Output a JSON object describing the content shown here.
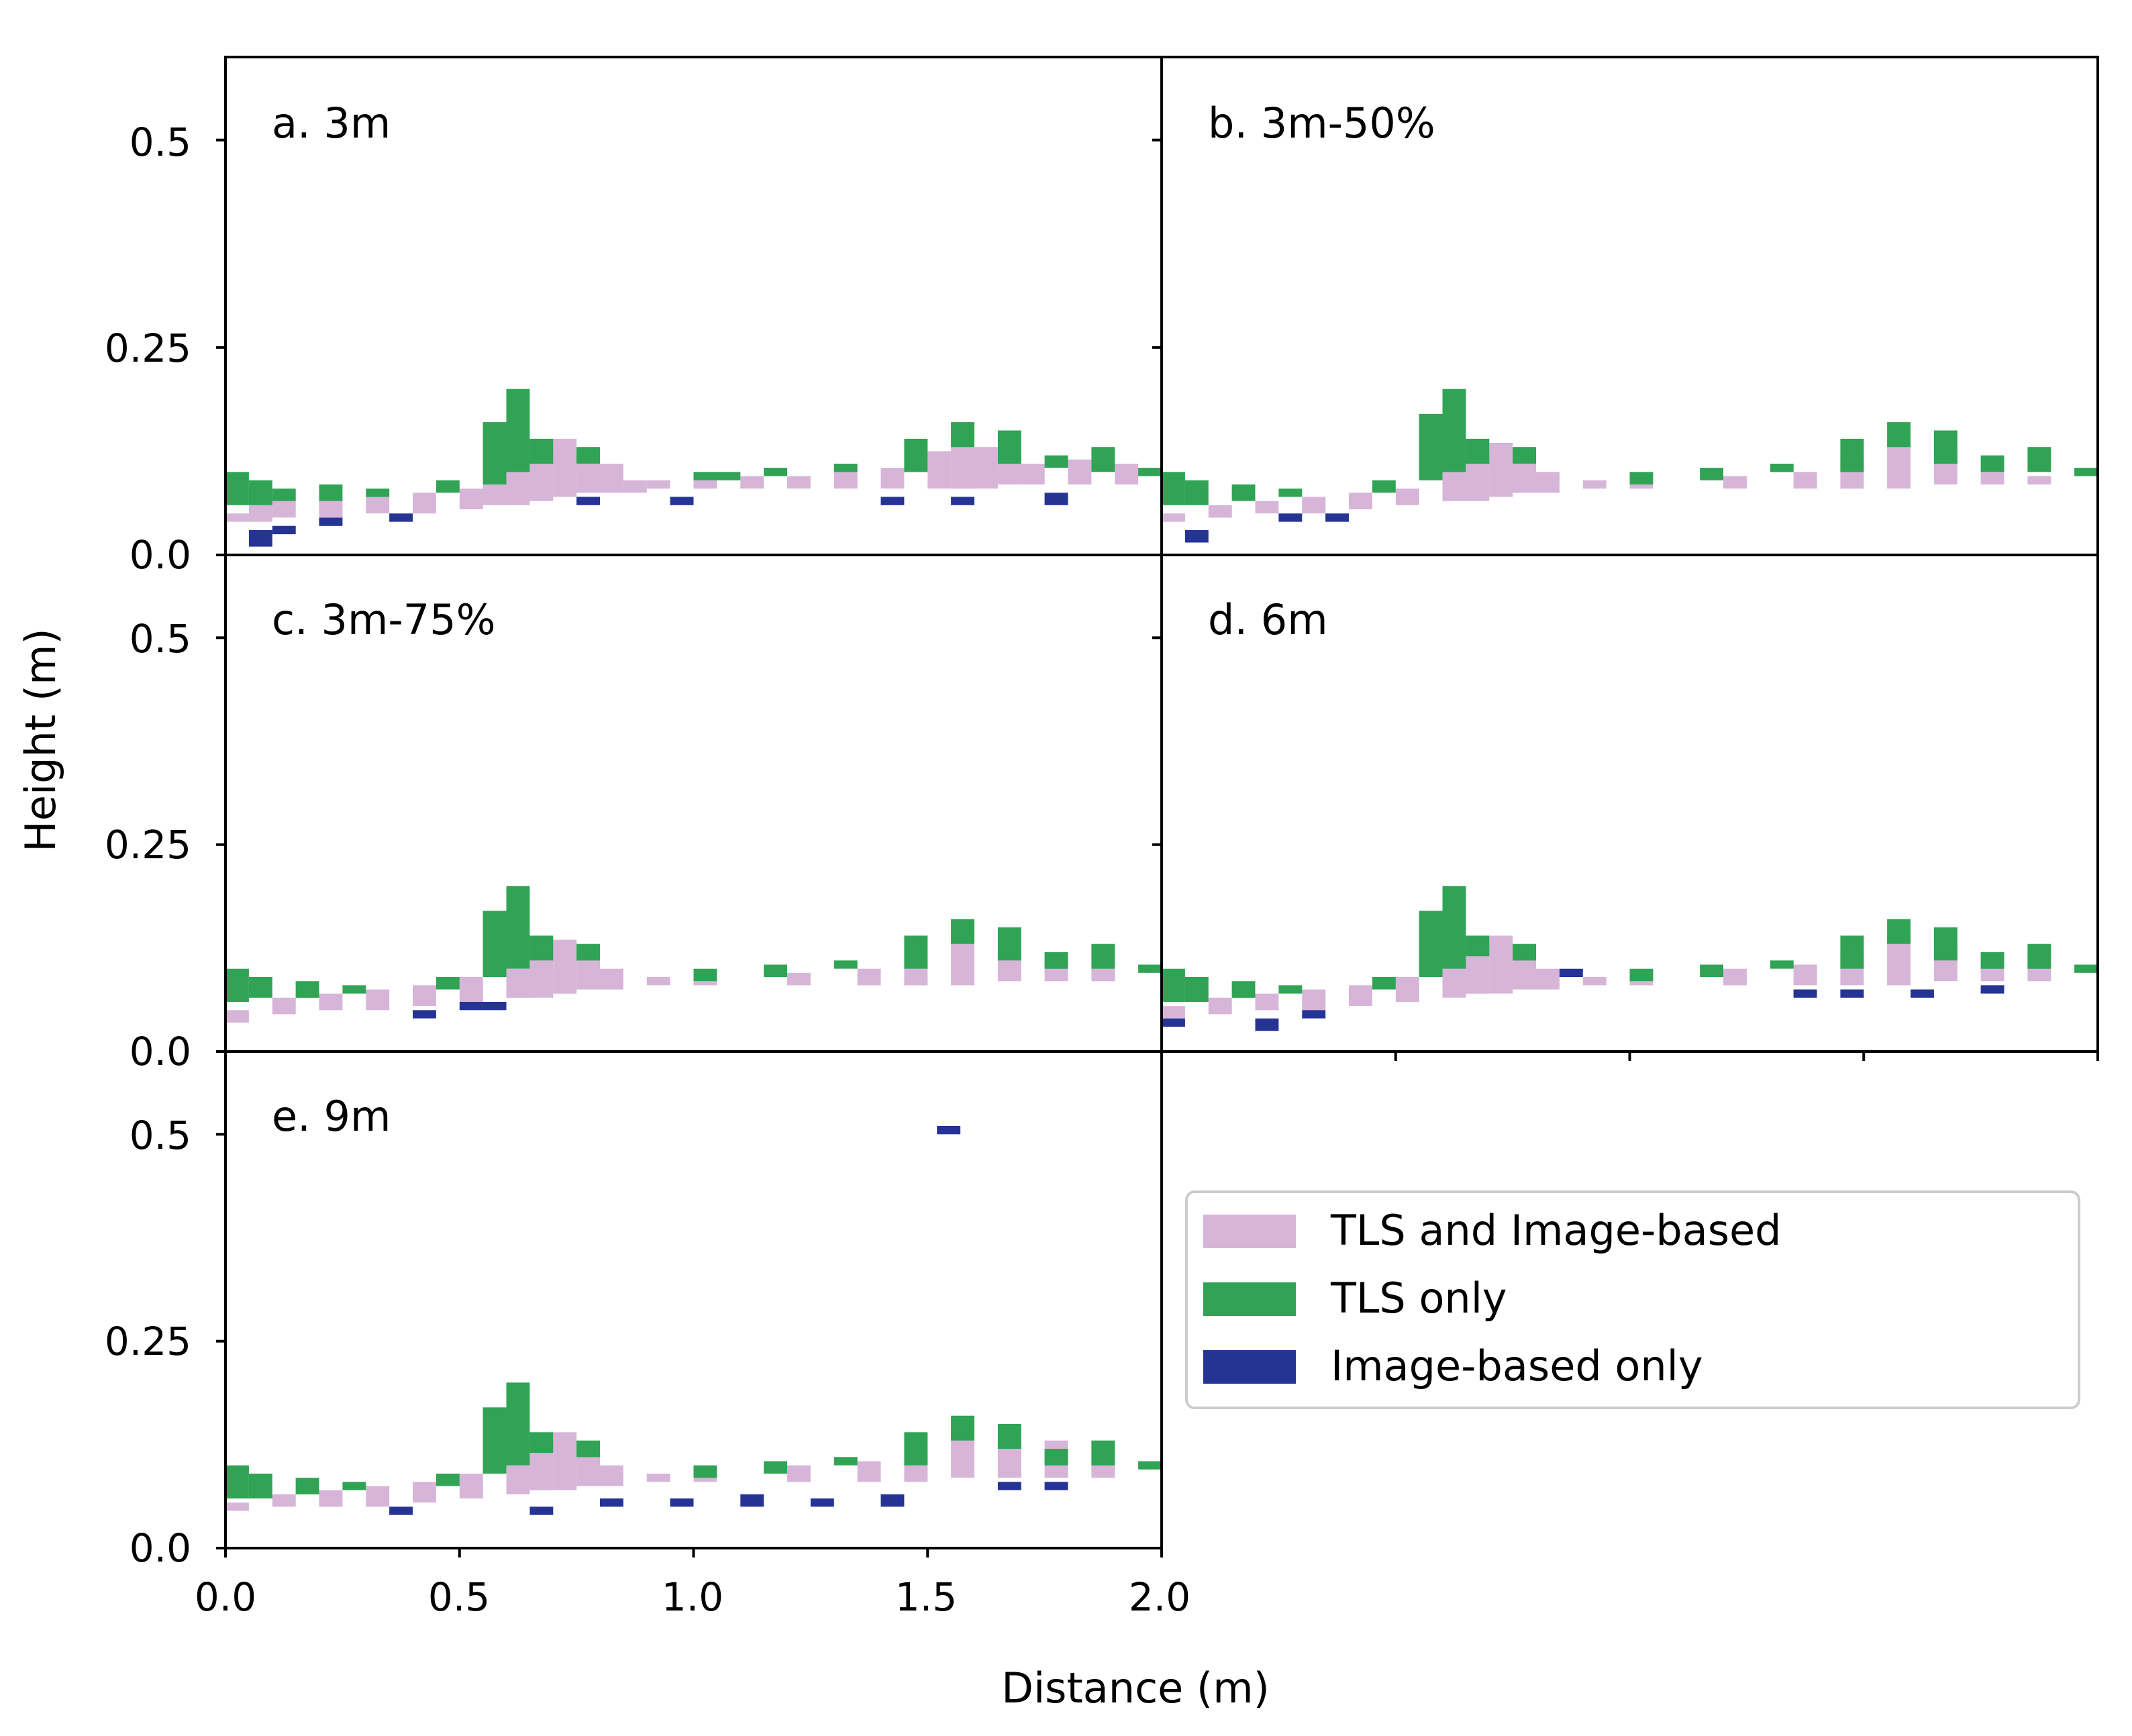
{
  "chart_data": {
    "type": "heatmap",
    "xlabel": "Distance (m)",
    "ylabel": "Height (m)",
    "xlim": [
      0.0,
      2.0
    ],
    "ylim": [
      0.0,
      0.6
    ],
    "xticks": [
      "0.0",
      "0.5",
      "1.0",
      "1.5",
      "2.0"
    ],
    "yticks": [
      "0.0",
      "0.25",
      "0.5"
    ],
    "colors": {
      "both": "#d7b5d8",
      "tls": "#31a354",
      "image": "#253494"
    },
    "legend": [
      {
        "key": "both",
        "label": "TLS and Image-based"
      },
      {
        "key": "tls",
        "label": "TLS only"
      },
      {
        "key": "image",
        "label": "Image-based only"
      }
    ],
    "panels": [
      {
        "label": "a. 3m",
        "both": [
          [
            0.0,
            0.04,
            0.05
          ],
          [
            0.05,
            0.04,
            0.06
          ],
          [
            0.1,
            0.045,
            0.065
          ],
          [
            0.2,
            0.045,
            0.065
          ],
          [
            0.3,
            0.05,
            0.07
          ],
          [
            0.4,
            0.05,
            0.075
          ],
          [
            0.5,
            0.055,
            0.08
          ],
          [
            0.55,
            0.06,
            0.09
          ],
          [
            0.6,
            0.06,
            0.105
          ],
          [
            0.65,
            0.065,
            0.13
          ],
          [
            0.7,
            0.07,
            0.14
          ],
          [
            0.75,
            0.075,
            0.12
          ],
          [
            0.8,
            0.075,
            0.11
          ],
          [
            0.85,
            0.075,
            0.09
          ],
          [
            0.9,
            0.08,
            0.09
          ],
          [
            1.0,
            0.08,
            0.09
          ],
          [
            1.1,
            0.08,
            0.095
          ],
          [
            1.2,
            0.08,
            0.095
          ],
          [
            1.3,
            0.08,
            0.1
          ],
          [
            1.4,
            0.08,
            0.105
          ],
          [
            1.5,
            0.08,
            0.125
          ],
          [
            1.55,
            0.08,
            0.14
          ],
          [
            1.6,
            0.08,
            0.13
          ],
          [
            1.65,
            0.085,
            0.12
          ],
          [
            1.7,
            0.085,
            0.11
          ],
          [
            1.8,
            0.085,
            0.115
          ],
          [
            1.9,
            0.085,
            0.11
          ]
        ],
        "tls": [
          [
            0.0,
            0.06,
            0.1
          ],
          [
            0.05,
            0.06,
            0.09
          ],
          [
            0.1,
            0.065,
            0.08
          ],
          [
            0.2,
            0.065,
            0.085
          ],
          [
            0.3,
            0.07,
            0.08
          ],
          [
            0.45,
            0.075,
            0.09
          ],
          [
            0.55,
            0.085,
            0.16
          ],
          [
            0.6,
            0.1,
            0.2
          ],
          [
            0.65,
            0.11,
            0.14
          ],
          [
            0.75,
            0.11,
            0.13
          ],
          [
            1.0,
            0.09,
            0.1
          ],
          [
            1.05,
            0.09,
            0.1
          ],
          [
            1.15,
            0.095,
            0.105
          ],
          [
            1.3,
            0.1,
            0.11
          ],
          [
            1.45,
            0.1,
            0.14
          ],
          [
            1.55,
            0.13,
            0.16
          ],
          [
            1.65,
            0.11,
            0.15
          ],
          [
            1.75,
            0.105,
            0.12
          ],
          [
            1.85,
            0.1,
            0.13
          ],
          [
            1.95,
            0.095,
            0.105
          ]
        ],
        "image": [
          [
            0.05,
            0.01,
            0.03
          ],
          [
            0.35,
            0.04,
            0.05
          ],
          [
            0.75,
            0.06,
            0.07
          ],
          [
            0.95,
            0.06,
            0.07
          ],
          [
            1.4,
            0.06,
            0.07
          ],
          [
            1.55,
            0.06,
            0.07
          ],
          [
            1.75,
            0.06,
            0.075
          ],
          [
            0.1,
            0.025,
            0.035
          ],
          [
            0.2,
            0.035,
            0.045
          ]
        ]
      },
      {
        "label": "b. 3m-50%",
        "both": [
          [
            0.0,
            0.04,
            0.05
          ],
          [
            0.1,
            0.045,
            0.06
          ],
          [
            0.2,
            0.05,
            0.065
          ],
          [
            0.3,
            0.05,
            0.07
          ],
          [
            0.4,
            0.055,
            0.075
          ],
          [
            0.5,
            0.06,
            0.08
          ],
          [
            0.6,
            0.065,
            0.1
          ],
          [
            0.65,
            0.065,
            0.125
          ],
          [
            0.7,
            0.07,
            0.135
          ],
          [
            0.75,
            0.075,
            0.115
          ],
          [
            0.8,
            0.075,
            0.1
          ],
          [
            0.9,
            0.08,
            0.09
          ],
          [
            1.0,
            0.08,
            0.09
          ],
          [
            1.2,
            0.08,
            0.095
          ],
          [
            1.35,
            0.08,
            0.1
          ],
          [
            1.45,
            0.08,
            0.115
          ],
          [
            1.55,
            0.08,
            0.135
          ],
          [
            1.65,
            0.085,
            0.12
          ],
          [
            1.75,
            0.085,
            0.1
          ],
          [
            1.85,
            0.085,
            0.095
          ]
        ],
        "tls": [
          [
            0.0,
            0.06,
            0.1
          ],
          [
            0.05,
            0.06,
            0.09
          ],
          [
            0.15,
            0.065,
            0.085
          ],
          [
            0.25,
            0.07,
            0.08
          ],
          [
            0.45,
            0.075,
            0.09
          ],
          [
            0.55,
            0.09,
            0.17
          ],
          [
            0.6,
            0.1,
            0.2
          ],
          [
            0.65,
            0.11,
            0.14
          ],
          [
            0.75,
            0.11,
            0.13
          ],
          [
            1.0,
            0.085,
            0.1
          ],
          [
            1.15,
            0.09,
            0.105
          ],
          [
            1.3,
            0.1,
            0.11
          ],
          [
            1.45,
            0.1,
            0.14
          ],
          [
            1.55,
            0.13,
            0.16
          ],
          [
            1.65,
            0.11,
            0.15
          ],
          [
            1.75,
            0.1,
            0.12
          ],
          [
            1.85,
            0.1,
            0.13
          ],
          [
            1.95,
            0.095,
            0.105
          ]
        ],
        "image": [
          [
            0.05,
            0.015,
            0.03
          ],
          [
            0.25,
            0.04,
            0.05
          ],
          [
            0.35,
            0.04,
            0.05
          ]
        ]
      },
      {
        "label": "c. 3m-75%",
        "both": [
          [
            0.0,
            0.035,
            0.05
          ],
          [
            0.1,
            0.045,
            0.065
          ],
          [
            0.2,
            0.05,
            0.07
          ],
          [
            0.3,
            0.05,
            0.075
          ],
          [
            0.4,
            0.055,
            0.08
          ],
          [
            0.5,
            0.06,
            0.09
          ],
          [
            0.6,
            0.065,
            0.1
          ],
          [
            0.65,
            0.065,
            0.125
          ],
          [
            0.7,
            0.07,
            0.135
          ],
          [
            0.75,
            0.075,
            0.115
          ],
          [
            0.8,
            0.075,
            0.1
          ],
          [
            0.9,
            0.08,
            0.09
          ],
          [
            1.0,
            0.08,
            0.09
          ],
          [
            1.2,
            0.08,
            0.095
          ],
          [
            1.35,
            0.08,
            0.1
          ],
          [
            1.45,
            0.08,
            0.115
          ],
          [
            1.55,
            0.08,
            0.135
          ],
          [
            1.65,
            0.085,
            0.12
          ],
          [
            1.75,
            0.085,
            0.105
          ],
          [
            1.85,
            0.085,
            0.1
          ]
        ],
        "tls": [
          [
            0.0,
            0.06,
            0.1
          ],
          [
            0.05,
            0.065,
            0.09
          ],
          [
            0.15,
            0.065,
            0.085
          ],
          [
            0.25,
            0.07,
            0.08
          ],
          [
            0.45,
            0.075,
            0.09
          ],
          [
            0.55,
            0.09,
            0.17
          ],
          [
            0.6,
            0.1,
            0.2
          ],
          [
            0.65,
            0.11,
            0.14
          ],
          [
            0.75,
            0.11,
            0.13
          ],
          [
            1.0,
            0.085,
            0.1
          ],
          [
            1.15,
            0.09,
            0.105
          ],
          [
            1.3,
            0.1,
            0.11
          ],
          [
            1.45,
            0.1,
            0.14
          ],
          [
            1.55,
            0.13,
            0.16
          ],
          [
            1.65,
            0.11,
            0.15
          ],
          [
            1.75,
            0.1,
            0.12
          ],
          [
            1.85,
            0.1,
            0.13
          ],
          [
            1.95,
            0.095,
            0.105
          ]
        ],
        "image": [
          [
            0.4,
            0.04,
            0.05
          ],
          [
            0.5,
            0.05,
            0.06
          ],
          [
            0.55,
            0.05,
            0.06
          ]
        ]
      },
      {
        "label": "d. 6m",
        "both": [
          [
            0.0,
            0.04,
            0.055
          ],
          [
            0.1,
            0.045,
            0.065
          ],
          [
            0.2,
            0.05,
            0.07
          ],
          [
            0.3,
            0.05,
            0.075
          ],
          [
            0.4,
            0.055,
            0.08
          ],
          [
            0.5,
            0.06,
            0.09
          ],
          [
            0.6,
            0.065,
            0.11
          ],
          [
            0.65,
            0.07,
            0.13
          ],
          [
            0.7,
            0.07,
            0.14
          ],
          [
            0.75,
            0.075,
            0.12
          ],
          [
            0.8,
            0.075,
            0.1
          ],
          [
            0.9,
            0.08,
            0.09
          ],
          [
            1.0,
            0.08,
            0.09
          ],
          [
            1.2,
            0.08,
            0.1
          ],
          [
            1.35,
            0.08,
            0.105
          ],
          [
            1.45,
            0.08,
            0.12
          ],
          [
            1.55,
            0.08,
            0.14
          ],
          [
            1.65,
            0.085,
            0.125
          ],
          [
            1.75,
            0.085,
            0.12
          ],
          [
            1.85,
            0.085,
            0.12
          ]
        ],
        "tls": [
          [
            0.0,
            0.06,
            0.1
          ],
          [
            0.05,
            0.06,
            0.09
          ],
          [
            0.15,
            0.065,
            0.085
          ],
          [
            0.25,
            0.07,
            0.08
          ],
          [
            0.45,
            0.075,
            0.09
          ],
          [
            0.55,
            0.09,
            0.17
          ],
          [
            0.6,
            0.1,
            0.2
          ],
          [
            0.65,
            0.115,
            0.14
          ],
          [
            0.75,
            0.11,
            0.13
          ],
          [
            1.0,
            0.085,
            0.1
          ],
          [
            1.15,
            0.09,
            0.105
          ],
          [
            1.3,
            0.1,
            0.11
          ],
          [
            1.45,
            0.1,
            0.14
          ],
          [
            1.55,
            0.13,
            0.16
          ],
          [
            1.65,
            0.11,
            0.15
          ],
          [
            1.75,
            0.1,
            0.12
          ],
          [
            1.85,
            0.1,
            0.13
          ],
          [
            1.95,
            0.095,
            0.105
          ]
        ],
        "image": [
          [
            0.0,
            0.03,
            0.04
          ],
          [
            0.2,
            0.025,
            0.04
          ],
          [
            0.3,
            0.04,
            0.05
          ],
          [
            0.85,
            0.09,
            0.1
          ],
          [
            1.35,
            0.065,
            0.075
          ],
          [
            1.45,
            0.065,
            0.075
          ],
          [
            1.6,
            0.065,
            0.075
          ],
          [
            1.75,
            0.07,
            0.08
          ]
        ]
      },
      {
        "label": "e. 9m",
        "both": [
          [
            0.0,
            0.045,
            0.055
          ],
          [
            0.1,
            0.05,
            0.065
          ],
          [
            0.2,
            0.05,
            0.07
          ],
          [
            0.3,
            0.05,
            0.075
          ],
          [
            0.4,
            0.055,
            0.08
          ],
          [
            0.5,
            0.06,
            0.09
          ],
          [
            0.6,
            0.065,
            0.11
          ],
          [
            0.65,
            0.07,
            0.13
          ],
          [
            0.7,
            0.07,
            0.14
          ],
          [
            0.75,
            0.075,
            0.12
          ],
          [
            0.8,
            0.075,
            0.1
          ],
          [
            0.9,
            0.08,
            0.09
          ],
          [
            1.0,
            0.08,
            0.09
          ],
          [
            1.2,
            0.08,
            0.1
          ],
          [
            1.35,
            0.08,
            0.105
          ],
          [
            1.45,
            0.08,
            0.12
          ],
          [
            1.55,
            0.085,
            0.14
          ],
          [
            1.65,
            0.085,
            0.13
          ],
          [
            1.75,
            0.085,
            0.13
          ],
          [
            1.85,
            0.085,
            0.13
          ]
        ],
        "tls": [
          [
            0.0,
            0.06,
            0.1
          ],
          [
            0.05,
            0.06,
            0.09
          ],
          [
            0.15,
            0.065,
            0.085
          ],
          [
            0.25,
            0.07,
            0.08
          ],
          [
            0.45,
            0.075,
            0.09
          ],
          [
            0.55,
            0.09,
            0.17
          ],
          [
            0.6,
            0.1,
            0.2
          ],
          [
            0.65,
            0.115,
            0.14
          ],
          [
            0.75,
            0.11,
            0.13
          ],
          [
            1.0,
            0.085,
            0.1
          ],
          [
            1.15,
            0.09,
            0.105
          ],
          [
            1.3,
            0.1,
            0.11
          ],
          [
            1.45,
            0.1,
            0.14
          ],
          [
            1.55,
            0.13,
            0.16
          ],
          [
            1.65,
            0.12,
            0.15
          ],
          [
            1.75,
            0.1,
            0.12
          ],
          [
            1.85,
            0.1,
            0.13
          ],
          [
            1.95,
            0.095,
            0.105
          ]
        ],
        "image": [
          [
            0.35,
            0.04,
            0.05
          ],
          [
            0.65,
            0.04,
            0.05
          ],
          [
            0.8,
            0.05,
            0.06
          ],
          [
            0.95,
            0.05,
            0.06
          ],
          [
            1.1,
            0.05,
            0.065
          ],
          [
            1.25,
            0.05,
            0.06
          ],
          [
            1.4,
            0.05,
            0.065
          ],
          [
            1.65,
            0.07,
            0.08
          ],
          [
            1.75,
            0.07,
            0.08
          ],
          [
            1.52,
            0.5,
            0.51
          ]
        ]
      }
    ]
  }
}
